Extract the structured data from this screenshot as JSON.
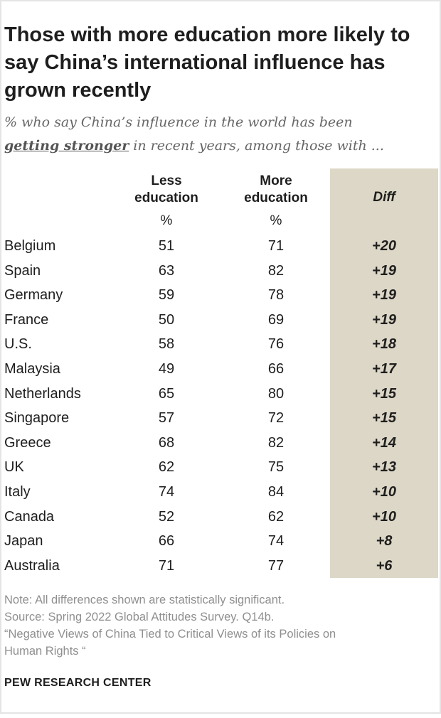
{
  "title": "Those with more education more likely to say China’s international influence has grown recently",
  "subtitle": {
    "line1": "% who say China’s influence in the world has been",
    "emphasis": "getting stronger",
    "line2_rest": " in recent years, among those with ..."
  },
  "columns": {
    "less": {
      "line1": "Less",
      "line2": "education",
      "unit": "%"
    },
    "more": {
      "line1": "More",
      "line2": "education",
      "unit": "%"
    },
    "diff": {
      "label": "Diff"
    }
  },
  "colors": {
    "diff_background": "#ddd7c7"
  },
  "chart_data": {
    "type": "table",
    "title": "Those with more education more likely to say China’s international influence has grown recently",
    "columns": [
      "Less education",
      "More education",
      "Diff"
    ],
    "rows": [
      {
        "country": "Belgium",
        "less": "51",
        "more": "71",
        "diff": "+20"
      },
      {
        "country": "Spain",
        "less": "63",
        "more": "82",
        "diff": "+19"
      },
      {
        "country": "Germany",
        "less": "59",
        "more": "78",
        "diff": "+19"
      },
      {
        "country": "France",
        "less": "50",
        "more": "69",
        "diff": "+19"
      },
      {
        "country": "U.S.",
        "less": "58",
        "more": "76",
        "diff": "+18"
      },
      {
        "country": "Malaysia",
        "less": "49",
        "more": "66",
        "diff": "+17"
      },
      {
        "country": "Netherlands",
        "less": "65",
        "more": "80",
        "diff": "+15"
      },
      {
        "country": "Singapore",
        "less": "57",
        "more": "72",
        "diff": "+15"
      },
      {
        "country": "Greece",
        "less": "68",
        "more": "82",
        "diff": "+14"
      },
      {
        "country": "UK",
        "less": "62",
        "more": "75",
        "diff": "+13"
      },
      {
        "country": "Italy",
        "less": "74",
        "more": "84",
        "diff": "+10"
      },
      {
        "country": "Canada",
        "less": "52",
        "more": "62",
        "diff": "+10"
      },
      {
        "country": "Japan",
        "less": "66",
        "more": "74",
        "diff": "+8"
      },
      {
        "country": "Australia",
        "less": "71",
        "more": "77",
        "diff": "+6"
      }
    ]
  },
  "footer": {
    "note": "Note: All differences shown are statistically significant.",
    "source": "Source: Spring 2022 Global Attitudes Survey. Q14b.",
    "report_line1": "“Negative Views of China Tied to Critical Views of its Policies on",
    "report_line2": "Human Rights “",
    "brand": "PEW RESEARCH CENTER"
  }
}
